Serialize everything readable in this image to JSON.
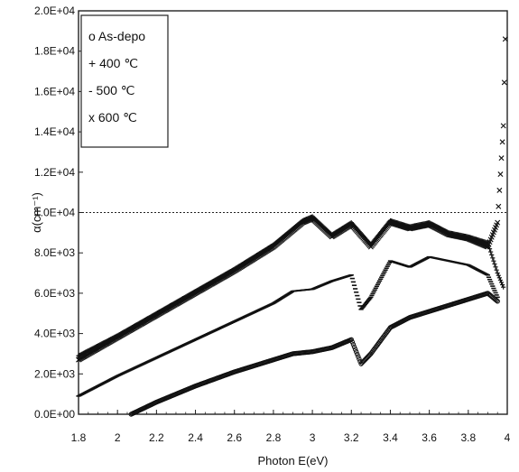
{
  "chart_data": {
    "type": "scatter",
    "xlabel": "Photon E(eV)",
    "ylabel": "α(cm⁻¹)",
    "xlim": [
      1.8,
      4.0
    ],
    "ylim": [
      0,
      20000
    ],
    "x_tick_labels": [
      "1.8",
      "2",
      "2.2",
      "2.4",
      "2.6",
      "2.8",
      "3",
      "3.2",
      "3.4",
      "3.6",
      "3.8",
      "4"
    ],
    "x_tick_values": [
      1.8,
      2.0,
      2.2,
      2.4,
      2.6,
      2.8,
      3.0,
      3.2,
      3.4,
      3.6,
      3.8,
      4.0
    ],
    "y_tick_labels": [
      "0.0E+00",
      "2.0E+03",
      "4.0E+03",
      "6.0E+03",
      "8.0E+03",
      "1.0E+04",
      "1.2E+04",
      "1.4E+04",
      "1.6E+04",
      "1.8E+04",
      "2.0E+04"
    ],
    "y_tick_values": [
      0,
      2000,
      4000,
      6000,
      8000,
      10000,
      12000,
      14000,
      16000,
      18000,
      20000
    ],
    "reference_line": {
      "y": 10000,
      "style": "dotted"
    },
    "grid": false,
    "legend_position": "top-left",
    "legend": [
      {
        "marker": "o",
        "label": "As-depo"
      },
      {
        "marker": "+",
        "label": "400 ℃"
      },
      {
        "marker": "-",
        "label": "500 ℃"
      },
      {
        "marker": "x",
        "label": "600 ℃"
      }
    ],
    "series": [
      {
        "name": "As-depo",
        "marker": "o",
        "x": [
          2.07,
          2.2,
          2.4,
          2.6,
          2.8,
          2.9,
          3.0,
          3.1,
          3.2,
          3.25,
          3.3,
          3.4,
          3.5,
          3.6,
          3.7,
          3.8,
          3.9,
          3.95
        ],
        "y": [
          0,
          600,
          1400,
          2100,
          2700,
          3000,
          3100,
          3300,
          3700,
          2500,
          3000,
          4300,
          4800,
          5100,
          5400,
          5700,
          6000,
          5600
        ]
      },
      {
        "name": "400 ℃",
        "marker": "+",
        "x": [
          1.8,
          2.0,
          2.2,
          2.4,
          2.6,
          2.8,
          2.95,
          3.0,
          3.1,
          3.2,
          3.3,
          3.4,
          3.5,
          3.6,
          3.7,
          3.8,
          3.9,
          3.95,
          3.98
        ],
        "y": [
          2900,
          3900,
          5000,
          6100,
          7200,
          8400,
          9600,
          9800,
          8900,
          9500,
          8400,
          9600,
          9300,
          9500,
          9000,
          8800,
          8500,
          7000,
          6300
        ]
      },
      {
        "name": "500 ℃",
        "marker": "-",
        "x": [
          1.8,
          2.0,
          2.2,
          2.4,
          2.6,
          2.8,
          2.9,
          3.0,
          3.1,
          3.2,
          3.25,
          3.3,
          3.4,
          3.5,
          3.6,
          3.7,
          3.8,
          3.9,
          3.95
        ],
        "y": [
          900,
          1900,
          2800,
          3700,
          4600,
          5500,
          6100,
          6200,
          6600,
          6900,
          5200,
          5800,
          7600,
          7300,
          7800,
          7600,
          7400,
          6900,
          5800
        ]
      },
      {
        "name": "600 ℃",
        "marker": "x",
        "x": [
          1.8,
          2.0,
          2.2,
          2.4,
          2.6,
          2.8,
          2.95,
          3.0,
          3.1,
          3.2,
          3.3,
          3.4,
          3.5,
          3.6,
          3.7,
          3.8,
          3.9,
          3.95,
          3.98,
          3.99
        ],
        "y": [
          2700,
          3800,
          4900,
          6000,
          7100,
          8300,
          9500,
          9700,
          8800,
          9400,
          8300,
          9500,
          9200,
          9400,
          8900,
          8700,
          8300,
          9500,
          14300,
          18600
        ]
      }
    ]
  }
}
